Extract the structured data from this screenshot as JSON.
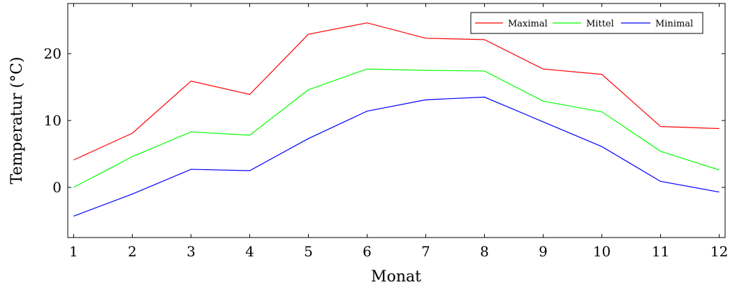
{
  "chart_data": {
    "type": "line",
    "title": "",
    "xlabel": "Monat",
    "ylabel": "Temperatur (°C)",
    "x": [
      1,
      2,
      3,
      4,
      5,
      6,
      7,
      8,
      9,
      10,
      11,
      12
    ],
    "xlim": [
      0.9,
      12.1
    ],
    "ylim": [
      -7.5,
      27.5
    ],
    "yticks": [
      0,
      10,
      20
    ],
    "grid": false,
    "legend_position": "top-right",
    "series": [
      {
        "name": "Maximal",
        "color": "#ff0000",
        "values": [
          4.1,
          8.1,
          15.9,
          13.9,
          22.9,
          24.6,
          22.3,
          22.1,
          17.7,
          16.9,
          9.1,
          8.8
        ]
      },
      {
        "name": "Mittel",
        "color": "#00ff00",
        "values": [
          0.0,
          4.6,
          8.3,
          7.8,
          14.6,
          17.7,
          17.5,
          17.4,
          12.9,
          11.3,
          5.4,
          2.6
        ]
      },
      {
        "name": "Minimal",
        "color": "#0000ff",
        "values": [
          -4.3,
          -1.0,
          2.7,
          2.5,
          7.3,
          11.4,
          13.1,
          13.5,
          9.8,
          6.1,
          0.9,
          -0.7
        ]
      }
    ]
  }
}
